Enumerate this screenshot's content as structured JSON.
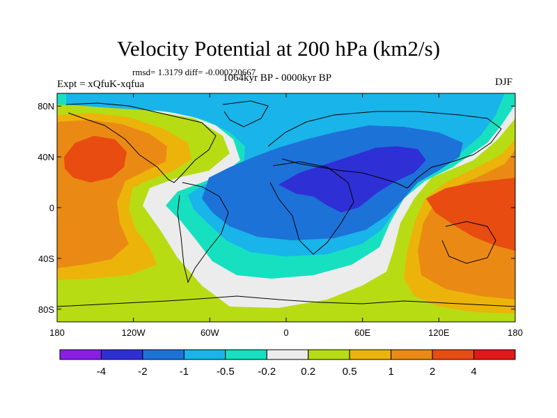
{
  "title": "Velocity Potential at 200 hPa (km2/s)",
  "stats": "rmsd= 1.3179 diff= -0.000220667",
  "experiment": "Expt = xQfuK-xqfua",
  "period": "1064kyr BP - 0000kyr BP",
  "season": "DJF",
  "lat_ticks": [
    "80N",
    "40N",
    "0",
    "40S",
    "80S"
  ],
  "lon_ticks": [
    "180",
    "120W",
    "60W",
    "0",
    "60E",
    "120E",
    "180"
  ],
  "colorbar": {
    "labels": [
      "-4",
      "-2",
      "-1",
      "-0.5",
      "-0.2",
      "0.2",
      "0.5",
      "1",
      "2",
      "4"
    ],
    "colors": [
      "#8a1ee6",
      "#2f2fd6",
      "#1d72d8",
      "#19b4ea",
      "#17e0c0",
      "#ececec",
      "#b7dc14",
      "#ecb40a",
      "#ea8a14",
      "#e84c10",
      "#e41818"
    ]
  },
  "colors": {
    "ocean_base": "#b7dc14",
    "neg_strong": "#2f2fd6",
    "neg_mid": "#1d72d8",
    "neg_weak": "#19b4ea",
    "neg_faint": "#17e0c0",
    "neutral": "#ececec",
    "pos_weak": "#ecb40a",
    "pos_mid": "#ea8a14",
    "pos_strong": "#e84c10"
  }
}
